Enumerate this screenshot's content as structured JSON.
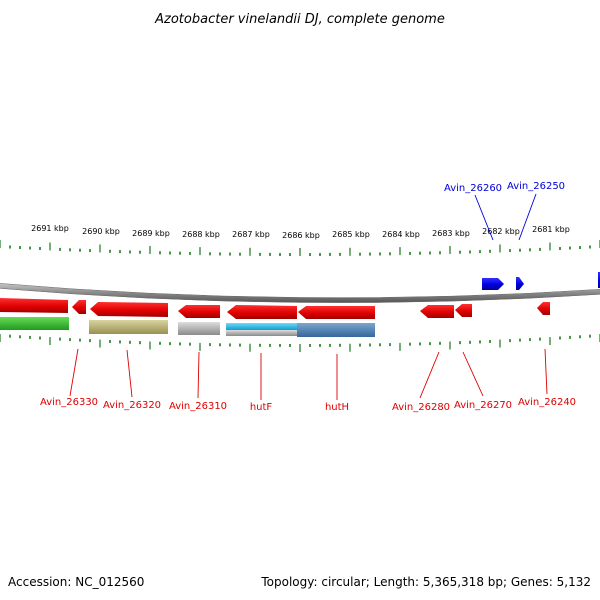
{
  "title": "Azotobacter vinelandii DJ, complete genome",
  "footer": {
    "accession": "Accession: NC_012560",
    "topology": "Topology: circular; Length: 5,365,318 bp; Genes: 5,132"
  },
  "ticks": [
    "2691 kbp",
    "2690 kbp",
    "2689 kbp",
    "2688 kbp",
    "2687 kbp",
    "2686 kbp",
    "2685 kbp",
    "2684 kbp",
    "2683 kbp",
    "2682 kbp",
    "2681 kbp"
  ],
  "colors": {
    "forward": "#0000dd",
    "reverse": "#ee0000",
    "tick": "#1a7a1a",
    "backbone": "#888888"
  },
  "genes": [
    {
      "label": "Avin_26330",
      "strand": "reverse"
    },
    {
      "label": "Avin_26320",
      "strand": "reverse"
    },
    {
      "label": "Avin_26310",
      "strand": "reverse"
    },
    {
      "label": "hutF",
      "strand": "reverse"
    },
    {
      "label": "hutH",
      "strand": "reverse"
    },
    {
      "label": "Avin_26280",
      "strand": "reverse"
    },
    {
      "label": "Avin_26270",
      "strand": "reverse"
    },
    {
      "label": "Avin_26240",
      "strand": "reverse"
    },
    {
      "label": "Avin_26260",
      "strand": "forward"
    },
    {
      "label": "Avin_26250",
      "strand": "forward"
    }
  ]
}
